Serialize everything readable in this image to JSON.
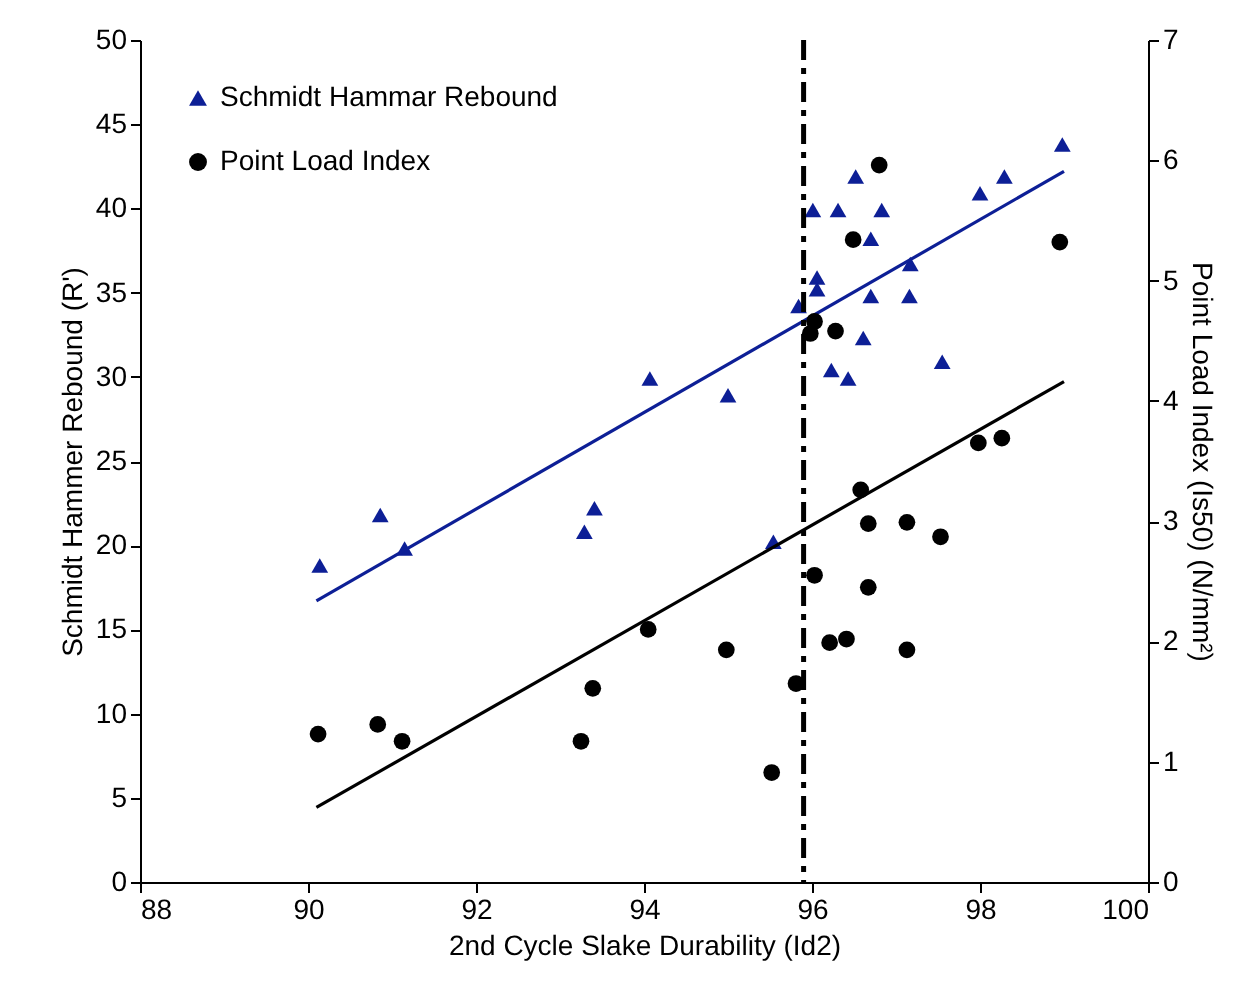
{
  "chart_data": {
    "type": "scatter",
    "xlabel": "2nd Cycle Slake Durability (Id2)",
    "ylabel": "Schmidt Hammer Rebound (R')",
    "y2label": "Point Load Index (Is50) (N/mm²)",
    "xlim": [
      88,
      100
    ],
    "xticks": [
      88,
      90,
      92,
      94,
      96,
      98,
      100
    ],
    "ylim": [
      0,
      50
    ],
    "yticks": [
      0,
      5,
      10,
      15,
      20,
      25,
      30,
      35,
      40,
      45,
      50
    ],
    "y2lim": [
      0,
      7
    ],
    "y2ticks": [
      0,
      1,
      2,
      3,
      4,
      5,
      6,
      7
    ],
    "grid": false,
    "legend": "top left",
    "ref_lines": [
      {
        "axis": "x",
        "value": 95.9,
        "line_style": "dashdot",
        "color": "#000000"
      }
    ],
    "series": [
      {
        "name": "Schmidt Hammar Rebound",
        "marker": "triangle",
        "color": "#0d1f96",
        "x": [
          90.14,
          90.86,
          91.15,
          93.29,
          93.41,
          94.07,
          95.0,
          95.54,
          95.84,
          96.01,
          96.06,
          96.06,
          96.31,
          96.52,
          96.83,
          96.7,
          97.17,
          96.7,
          97.16,
          96.61,
          96.23,
          96.43,
          97.55,
          98.0,
          98.29,
          98.98
        ],
        "values": [
          18.8,
          21.8,
          19.8,
          20.8,
          22.2,
          29.9,
          28.9,
          20.2,
          34.2,
          39.9,
          35.9,
          35.2,
          39.9,
          41.9,
          39.9,
          38.2,
          36.7,
          34.8,
          34.8,
          32.3,
          30.4,
          29.9,
          30.9,
          40.9,
          41.9,
          43.8
        ]
      },
      {
        "name": "Point Load Index",
        "marker": "circle",
        "color": "#000000",
        "axis": "y2",
        "x": [
          90.12,
          90.83,
          91.12,
          93.25,
          93.39,
          94.05,
          94.98,
          95.52,
          95.81,
          95.98,
          96.03,
          96.28,
          96.03,
          96.21,
          96.41,
          96.49,
          96.8,
          96.58,
          96.67,
          96.67,
          97.13,
          97.13,
          97.53,
          97.98,
          98.26,
          98.95
        ],
        "values": [
          1.23,
          1.31,
          1.17,
          1.17,
          1.61,
          2.1,
          1.93,
          0.91,
          1.65,
          4.56,
          4.66,
          4.58,
          2.55,
          1.99,
          2.02,
          5.34,
          5.96,
          3.26,
          2.98,
          2.45,
          2.99,
          1.93,
          2.87,
          3.65,
          3.69,
          5.32
        ]
      },
      {
        "type": "line",
        "color": "#0d1f96",
        "x": [
          90.1,
          99.0
        ],
        "values": [
          16.7,
          42.2
        ]
      },
      {
        "type": "line",
        "color": "#000000",
        "axis": "y2",
        "x": [
          90.1,
          99.0
        ],
        "values": [
          0.62,
          4.16
        ]
      }
    ]
  }
}
